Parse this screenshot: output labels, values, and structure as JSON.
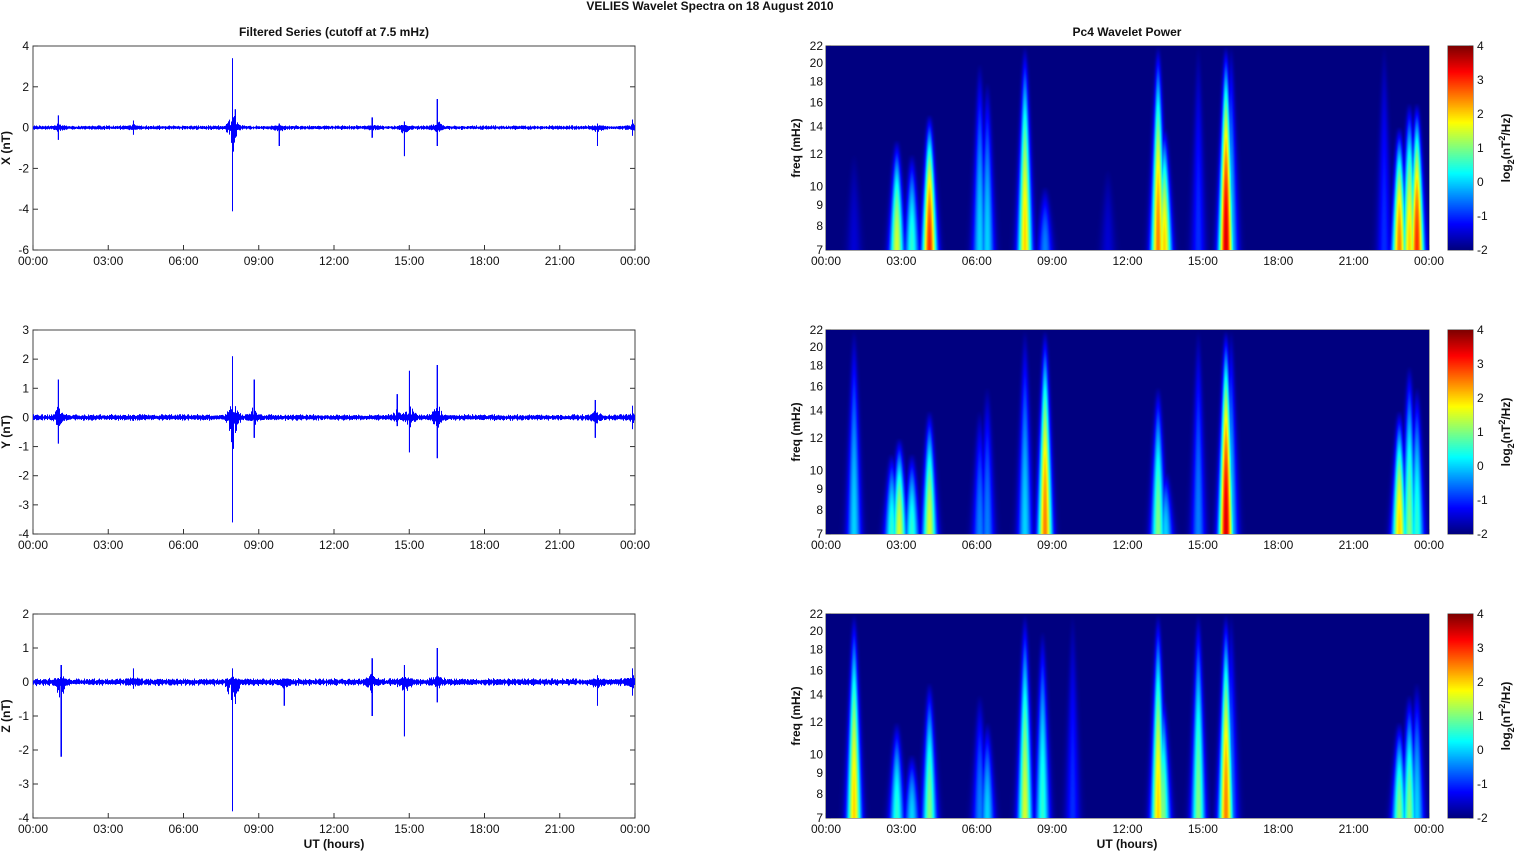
{
  "chart_data": {
    "title": "VELIES Wavelet Spectra on 18 August    2010",
    "left_title": "Filtered Series (cutoff at 7.5 mHz)",
    "right_title": "Pc4 Wavelet Power",
    "xlabel": "UT (hours)",
    "x_ticks": [
      "00:00",
      "03:00",
      "06:00",
      "09:00",
      "12:00",
      "15:00",
      "18:00",
      "21:00",
      "00:00"
    ],
    "xlim": [
      0,
      24
    ],
    "series_color": "#0000ff",
    "noise_amplitude": 0.08,
    "series": [
      {
        "type": "line",
        "name": "X",
        "ylabel": "X (nT)",
        "ylim": [
          -6,
          4
        ],
        "y_ticks": [
          -6,
          -4,
          -2,
          0,
          2,
          4
        ],
        "spikes": [
          {
            "t": 1.0,
            "max": 0.6,
            "min": -0.6
          },
          {
            "t": 4.0,
            "max": 0.35,
            "min": -0.35
          },
          {
            "t": 7.95,
            "max": 3.4,
            "min": -4.1
          },
          {
            "t": 8.05,
            "max": 0.9,
            "min": -0.5
          },
          {
            "t": 9.8,
            "max": 0.2,
            "min": -0.9
          },
          {
            "t": 13.5,
            "max": 0.5,
            "min": -0.5
          },
          {
            "t": 14.8,
            "max": 0.3,
            "min": -1.4
          },
          {
            "t": 16.1,
            "max": 1.4,
            "min": -0.9
          },
          {
            "t": 22.5,
            "max": 0.2,
            "min": -0.9
          },
          {
            "t": 23.9,
            "max": 0.4,
            "min": -0.4
          }
        ]
      },
      {
        "type": "line",
        "name": "Y",
        "ylabel": "Y (nT)",
        "ylim": [
          -4,
          3
        ],
        "y_ticks": [
          -4,
          -3,
          -2,
          -1,
          0,
          1,
          2,
          3
        ],
        "spikes": [
          {
            "t": 1.0,
            "max": 1.3,
            "min": -0.9
          },
          {
            "t": 7.95,
            "max": 2.1,
            "min": -3.6
          },
          {
            "t": 8.8,
            "max": 1.3,
            "min": -0.7
          },
          {
            "t": 14.5,
            "max": 0.8,
            "min": -0.3
          },
          {
            "t": 15.0,
            "max": 1.6,
            "min": -1.2
          },
          {
            "t": 16.1,
            "max": 1.8,
            "min": -1.4
          },
          {
            "t": 22.4,
            "max": 0.6,
            "min": -0.7
          },
          {
            "t": 23.9,
            "max": 0.4,
            "min": -0.4
          }
        ]
      },
      {
        "type": "line",
        "name": "Z",
        "ylabel": "Z (nT)",
        "ylim": [
          -4,
          2
        ],
        "y_ticks": [
          -4,
          -3,
          -2,
          -1,
          0,
          1,
          2
        ],
        "spikes": [
          {
            "t": 1.1,
            "max": 0.5,
            "min": -2.2
          },
          {
            "t": 4.0,
            "max": 0.4,
            "min": -0.2
          },
          {
            "t": 7.95,
            "max": 0.4,
            "min": -3.8
          },
          {
            "t": 10.0,
            "max": 0.1,
            "min": -0.7
          },
          {
            "t": 13.5,
            "max": 0.7,
            "min": -1.0
          },
          {
            "t": 14.8,
            "max": 0.5,
            "min": -1.6
          },
          {
            "t": 16.1,
            "max": 1.0,
            "min": -0.6
          },
          {
            "t": 22.5,
            "max": 0.2,
            "min": -0.7
          },
          {
            "t": 23.9,
            "max": 0.4,
            "min": -0.4
          }
        ]
      }
    ],
    "spectra": [
      {
        "type": "heatmap",
        "ylabel": "freq (mHz)",
        "ylim": [
          7,
          22
        ],
        "y_ticks": [
          7,
          8,
          9,
          10,
          12,
          14,
          16,
          18,
          20,
          22
        ],
        "background": -2,
        "events": [
          {
            "t": 1.1,
            "peak": -1.5,
            "fmax": 12
          },
          {
            "t": 2.8,
            "peak": 1.5,
            "fmax": 13
          },
          {
            "t": 3.4,
            "peak": 0.5,
            "fmax": 12
          },
          {
            "t": 4.1,
            "peak": 3,
            "fmax": 15
          },
          {
            "t": 6.1,
            "peak": 0,
            "fmax": 20
          },
          {
            "t": 6.4,
            "peak": 0,
            "fmax": 18
          },
          {
            "t": 7.9,
            "peak": 2,
            "fmax": 22
          },
          {
            "t": 8.7,
            "peak": -0.5,
            "fmax": 10
          },
          {
            "t": 11.2,
            "peak": -1.5,
            "fmax": 11
          },
          {
            "t": 13.2,
            "peak": 2.5,
            "fmax": 22
          },
          {
            "t": 13.45,
            "peak": 2,
            "fmax": 14
          },
          {
            "t": 14.8,
            "peak": -1,
            "fmax": 22
          },
          {
            "t": 15.9,
            "peak": 3.5,
            "fmax": 22
          },
          {
            "t": 16.1,
            "peak": 0,
            "fmax": 22
          },
          {
            "t": 22.2,
            "peak": -1,
            "fmax": 22
          },
          {
            "t": 22.8,
            "peak": 2.5,
            "fmax": 14
          },
          {
            "t": 23.2,
            "peak": 2,
            "fmax": 16
          },
          {
            "t": 23.5,
            "peak": 3,
            "fmax": 16
          }
        ]
      },
      {
        "type": "heatmap",
        "ylabel": "freq (mHz)",
        "ylim": [
          7,
          22
        ],
        "y_ticks": [
          7,
          8,
          9,
          10,
          12,
          14,
          16,
          18,
          20,
          22
        ],
        "background": -2,
        "events": [
          {
            "t": 1.1,
            "peak": 0,
            "fmax": 22
          },
          {
            "t": 2.6,
            "peak": 0.5,
            "fmax": 11
          },
          {
            "t": 2.9,
            "peak": 1.5,
            "fmax": 12
          },
          {
            "t": 3.4,
            "peak": 0.5,
            "fmax": 11
          },
          {
            "t": 4.1,
            "peak": 1.5,
            "fmax": 14
          },
          {
            "t": 6.1,
            "peak": -0.5,
            "fmax": 14
          },
          {
            "t": 6.4,
            "peak": -0.5,
            "fmax": 16
          },
          {
            "t": 7.9,
            "peak": 0,
            "fmax": 22
          },
          {
            "t": 8.7,
            "peak": 2.5,
            "fmax": 22
          },
          {
            "t": 13.2,
            "peak": 1,
            "fmax": 16
          },
          {
            "t": 13.5,
            "peak": 0,
            "fmax": 10
          },
          {
            "t": 14.8,
            "peak": -0.5,
            "fmax": 22
          },
          {
            "t": 15.9,
            "peak": 3.5,
            "fmax": 22
          },
          {
            "t": 16.1,
            "peak": 0,
            "fmax": 22
          },
          {
            "t": 22.8,
            "peak": 2,
            "fmax": 14
          },
          {
            "t": 23.2,
            "peak": 1,
            "fmax": 18
          },
          {
            "t": 23.5,
            "peak": 0.5,
            "fmax": 16
          }
        ]
      },
      {
        "type": "heatmap",
        "ylabel": "freq (mHz)",
        "ylim": [
          7,
          22
        ],
        "y_ticks": [
          7,
          8,
          9,
          10,
          12,
          14,
          16,
          18,
          20,
          22
        ],
        "background": -2,
        "events": [
          {
            "t": 1.1,
            "peak": 2,
            "fmax": 22
          },
          {
            "t": 2.8,
            "peak": 0.5,
            "fmax": 12
          },
          {
            "t": 3.4,
            "peak": 0,
            "fmax": 10
          },
          {
            "t": 4.1,
            "peak": 1,
            "fmax": 15
          },
          {
            "t": 6.1,
            "peak": -0.5,
            "fmax": 14
          },
          {
            "t": 6.4,
            "peak": 0,
            "fmax": 12
          },
          {
            "t": 7.9,
            "peak": 1.5,
            "fmax": 22
          },
          {
            "t": 8.6,
            "peak": 0.5,
            "fmax": 20
          },
          {
            "t": 9.8,
            "peak": -1,
            "fmax": 22
          },
          {
            "t": 13.2,
            "peak": 2,
            "fmax": 22
          },
          {
            "t": 13.4,
            "peak": 1,
            "fmax": 14
          },
          {
            "t": 14.8,
            "peak": 1,
            "fmax": 22
          },
          {
            "t": 15.9,
            "peak": 2.5,
            "fmax": 22
          },
          {
            "t": 16.1,
            "peak": -0.5,
            "fmax": 22
          },
          {
            "t": 22.8,
            "peak": 1,
            "fmax": 12
          },
          {
            "t": 23.2,
            "peak": 1,
            "fmax": 14
          },
          {
            "t": 23.5,
            "peak": 0,
            "fmax": 15
          }
        ]
      }
    ],
    "colorbar": {
      "clim": [
        -2,
        4
      ],
      "ticks": [
        -2,
        -1,
        0,
        1,
        2,
        3,
        4
      ],
      "label": "log2(nT2/Hz)",
      "colormap": "jet"
    }
  }
}
